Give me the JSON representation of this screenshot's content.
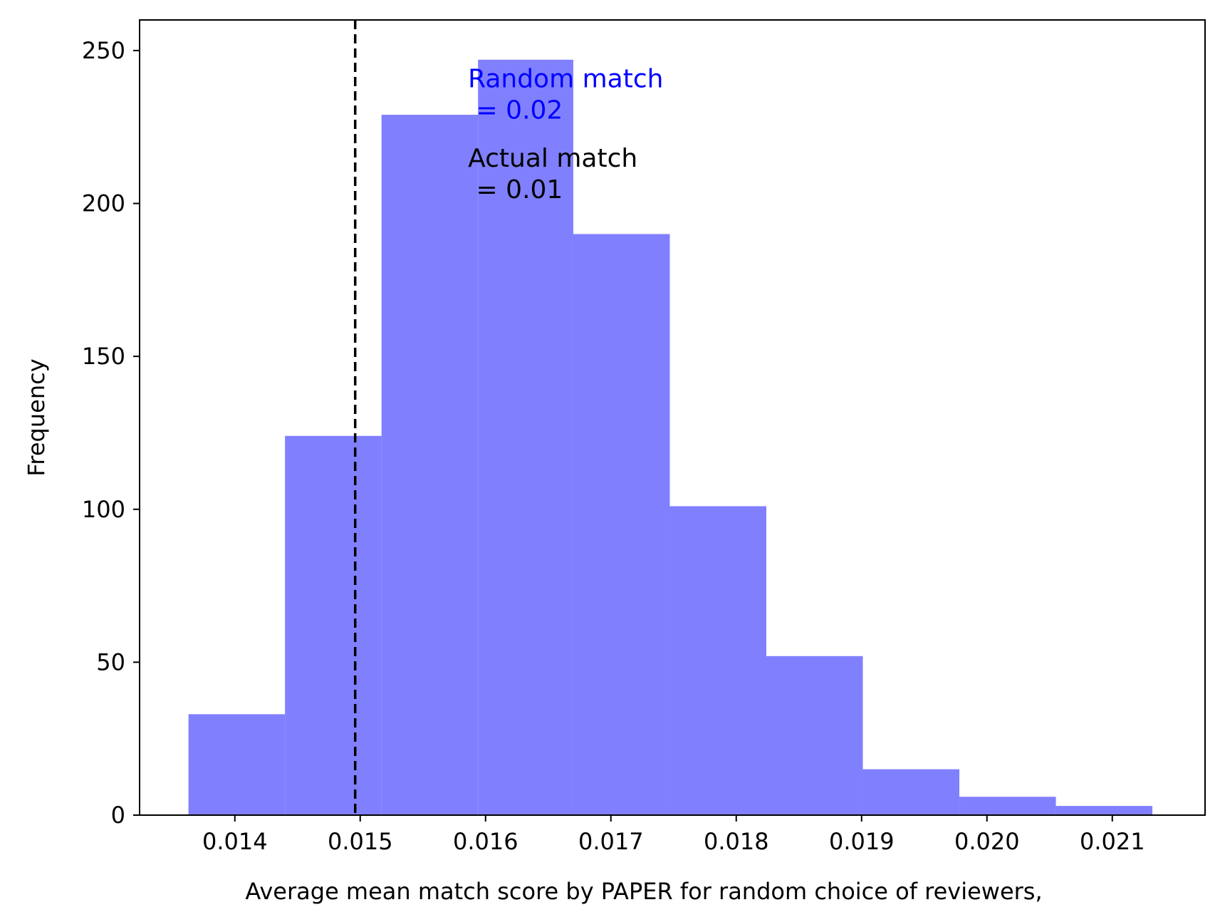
{
  "chart_data": {
    "type": "bar",
    "subtype": "histogram",
    "xlabel": "Average mean match score by PAPER for random choice of reviewers,",
    "ylabel": "Frequency",
    "xlim": [
      0.01324,
      0.02174
    ],
    "ylim": [
      0,
      260
    ],
    "x_ticks": [
      {
        "value": 0.014,
        "label": "0.014"
      },
      {
        "value": 0.015,
        "label": "0.015"
      },
      {
        "value": 0.016,
        "label": "0.016"
      },
      {
        "value": 0.017,
        "label": "0.017"
      },
      {
        "value": 0.018,
        "label": "0.018"
      },
      {
        "value": 0.019,
        "label": "0.019"
      },
      {
        "value": 0.02,
        "label": "0.020"
      },
      {
        "value": 0.021,
        "label": "0.021"
      }
    ],
    "y_ticks": [
      {
        "value": 0,
        "label": "0"
      },
      {
        "value": 50,
        "label": "50"
      },
      {
        "value": 100,
        "label": "100"
      },
      {
        "value": 150,
        "label": "150"
      },
      {
        "value": 200,
        "label": "200"
      },
      {
        "value": 250,
        "label": "250"
      }
    ],
    "bins": [
      {
        "start": 0.01363,
        "end": 0.0144,
        "count": 33
      },
      {
        "start": 0.0144,
        "end": 0.01517,
        "count": 124
      },
      {
        "start": 0.01517,
        "end": 0.01594,
        "count": 229
      },
      {
        "start": 0.01594,
        "end": 0.0167,
        "count": 247
      },
      {
        "start": 0.0167,
        "end": 0.01747,
        "count": 190
      },
      {
        "start": 0.01747,
        "end": 0.01824,
        "count": 101
      },
      {
        "start": 0.01824,
        "end": 0.01901,
        "count": 52
      },
      {
        "start": 0.01901,
        "end": 0.01978,
        "count": 15
      },
      {
        "start": 0.01978,
        "end": 0.02055,
        "count": 6
      },
      {
        "start": 0.02055,
        "end": 0.02132,
        "count": 3
      }
    ],
    "bar_color": "#8080ff",
    "reference_line": {
      "x": 0.01496,
      "style": "dashed",
      "color": "#000000"
    },
    "annotations": [
      {
        "lines": [
          "Random match",
          " = 0.02"
        ],
        "x": 0.01586,
        "y": 238,
        "color": "#0000ff"
      },
      {
        "lines": [
          "Actual match",
          " = 0.01"
        ],
        "x": 0.01586,
        "y": 212,
        "color": "#000000"
      }
    ],
    "grid": false,
    "legend": "none"
  }
}
